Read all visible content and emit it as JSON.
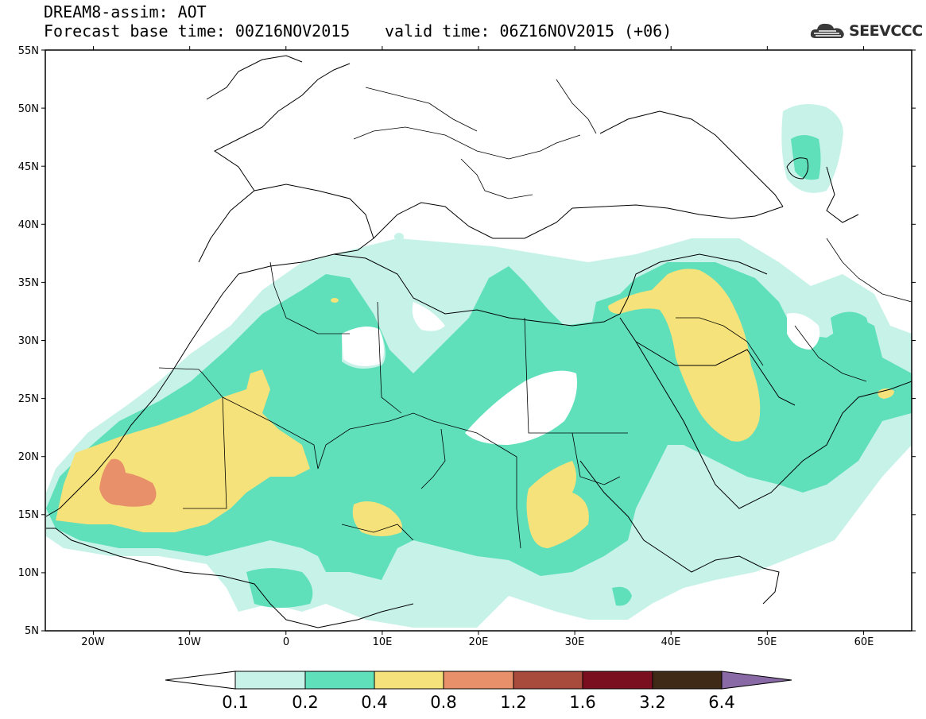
{
  "header": {
    "title": "DREAM8-assim: AOT",
    "base_time": "Forecast base time: 00Z16NOV2015",
    "valid_time": "valid time: 06Z16NOV2015 (+06)"
  },
  "logo": {
    "text": "SEEVCCC",
    "icon": "cloud-icon"
  },
  "map": {
    "lon_range": [
      -25,
      65
    ],
    "lat_range": [
      5,
      55
    ],
    "lat_labels": [
      "5N",
      "10N",
      "15N",
      "20N",
      "25N",
      "30N",
      "35N",
      "40N",
      "45N",
      "50N",
      "55N"
    ],
    "lon_labels": [
      "20W",
      "10W",
      "0",
      "10E",
      "20E",
      "30E",
      "40E",
      "50E",
      "60E"
    ],
    "field": "AOT"
  },
  "colorbar": {
    "levels": [
      "0.1",
      "0.2",
      "0.4",
      "0.8",
      "1.2",
      "1.6",
      "3.2",
      "6.4"
    ],
    "colors": [
      "#ffffff",
      "#c7f2e8",
      "#5fe0bb",
      "#f6e27a",
      "#e8906a",
      "#a84b3d",
      "#7a0f1f",
      "#3e2a17",
      "#8a6aa6"
    ]
  }
}
